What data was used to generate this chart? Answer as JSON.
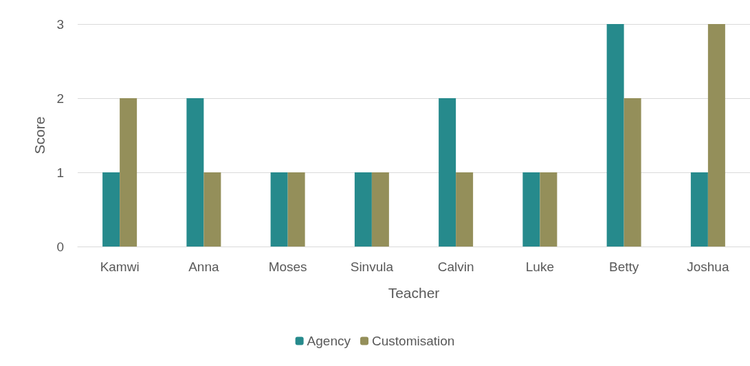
{
  "chart_data": {
    "type": "bar",
    "xlabel": "Teacher",
    "ylabel": "Score",
    "categories": [
      "Kamwi",
      "Anna",
      "Moses",
      "Sinvula",
      "Calvin",
      "Luke",
      "Betty",
      "Joshua"
    ],
    "series": [
      {
        "name": "Agency",
        "color": "#268a8c",
        "values": [
          1,
          2,
          1,
          1,
          2,
          1,
          3,
          1
        ]
      },
      {
        "name": "Customisation",
        "color": "#948f5a",
        "values": [
          2,
          1,
          1,
          1,
          1,
          1,
          2,
          3
        ]
      }
    ],
    "ylim": [
      0,
      3
    ],
    "yticks": [
      0,
      1,
      2,
      3
    ],
    "grid": "y",
    "legend": "bottom"
  }
}
